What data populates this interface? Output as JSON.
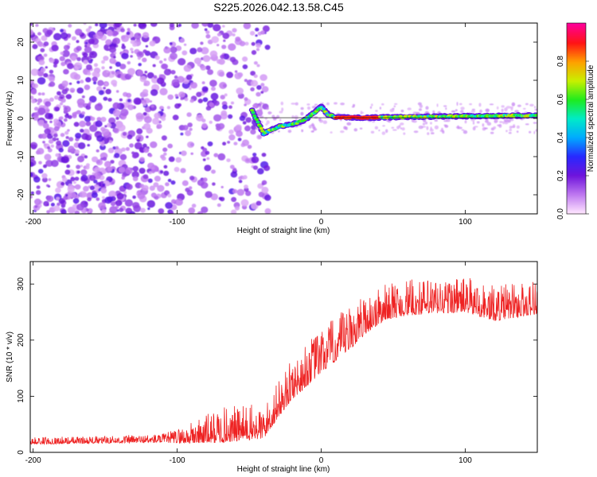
{
  "title": "S225.2026.042.13.58.C45",
  "chart_data": [
    {
      "type": "heatmap",
      "xlabel": "Height of straight line (km)",
      "ylabel": "Frequency (Hz)",
      "xlim": [
        -202,
        150
      ],
      "ylim": [
        -25,
        25
      ],
      "xticks": [
        -200,
        -100,
        0,
        100
      ],
      "yticks": [
        -20,
        -10,
        0,
        10,
        20
      ],
      "colorbar": {
        "label": "Normalized spectral amplitude",
        "range": [
          0,
          1
        ],
        "ticks": [
          0.0,
          0.2,
          0.4,
          0.6,
          0.8
        ]
      },
      "ridge": {
        "description_values_km_hz": [
          [
            -48,
            2
          ],
          [
            -40,
            -4
          ],
          [
            -35,
            -3
          ],
          [
            -28,
            -2
          ],
          [
            -20,
            -1.5
          ],
          [
            -12,
            -0.5
          ],
          [
            -5,
            1.5
          ],
          [
            0,
            3
          ],
          [
            5,
            1
          ],
          [
            10,
            0.3
          ],
          [
            30,
            0.2
          ],
          [
            60,
            0.4
          ],
          [
            100,
            0.6
          ],
          [
            150,
            0.8
          ]
        ],
        "peak_amplitude_range_km": [
          10,
          40
        ]
      },
      "noise_region_km": [
        -202,
        -45
      ]
    },
    {
      "type": "line",
      "xlabel": "Height of straight line (km)",
      "ylabel": "SNR (10 * v/v)",
      "xlim": [
        -202,
        150
      ],
      "ylim": [
        0,
        340
      ],
      "xticks": [
        -200,
        -100,
        0,
        100
      ],
      "yticks": [
        0,
        100,
        200,
        300
      ],
      "series": [
        {
          "name": "SNR",
          "color": "#ee2222",
          "trend_x": [
            -202,
            -150,
            -110,
            -95,
            -70,
            -50,
            -40,
            -30,
            -20,
            -10,
            0,
            10,
            20,
            30,
            45,
            60,
            80,
            100,
            120,
            140,
            150
          ],
          "trend_y": [
            18,
            20,
            22,
            25,
            35,
            40,
            40,
            80,
            115,
            140,
            165,
            185,
            205,
            230,
            255,
            262,
            265,
            268,
            252,
            260,
            265
          ],
          "noise_amplitude": [
            8,
            8,
            10,
            20,
            40,
            40,
            35,
            40,
            45,
            50,
            50,
            50,
            50,
            45,
            40,
            40,
            40,
            40,
            40,
            40,
            40
          ]
        }
      ]
    }
  ]
}
